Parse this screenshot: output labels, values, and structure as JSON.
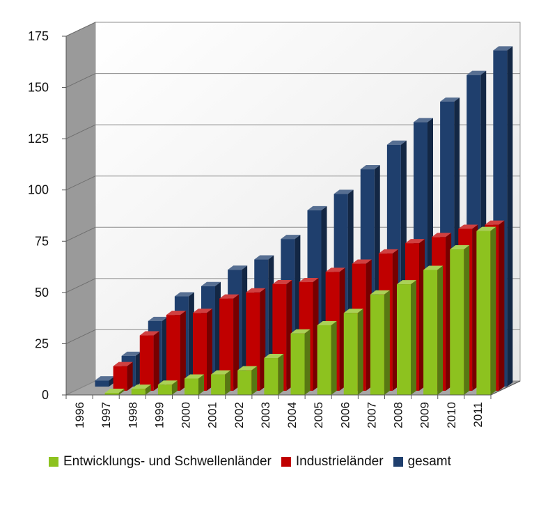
{
  "chart_data": {
    "type": "bar",
    "title": "",
    "xlabel": "",
    "ylabel": "",
    "ylim": [
      0,
      175
    ],
    "yticks": [
      0,
      25,
      50,
      75,
      100,
      125,
      150,
      175
    ],
    "grid": true,
    "legend_position": "bottom",
    "categories": [
      "1996",
      "1997",
      "1998",
      "1999",
      "2000",
      "2001",
      "2002",
      "2003",
      "2004",
      "2005",
      "2006",
      "2007",
      "2008",
      "2009",
      "2010",
      "2011"
    ],
    "series": [
      {
        "name": "Entwicklungs- und Schwellenländer",
        "color": "#8dc21f",
        "values": [
          0,
          1,
          3,
          5,
          8,
          10,
          12,
          18,
          30,
          34,
          40,
          49,
          54,
          61,
          71,
          80
        ]
      },
      {
        "name": "Industrieländer",
        "color": "#c00000",
        "values": [
          0,
          12,
          27,
          37,
          38,
          45,
          48,
          52,
          53,
          58,
          62,
          67,
          72,
          75,
          79,
          81
        ]
      },
      {
        "name": "gesamt",
        "color": "#1f3f6d",
        "values": [
          3,
          15,
          32,
          44,
          49,
          57,
          62,
          72,
          86,
          94,
          106,
          118,
          129,
          139,
          152,
          164
        ]
      }
    ]
  }
}
